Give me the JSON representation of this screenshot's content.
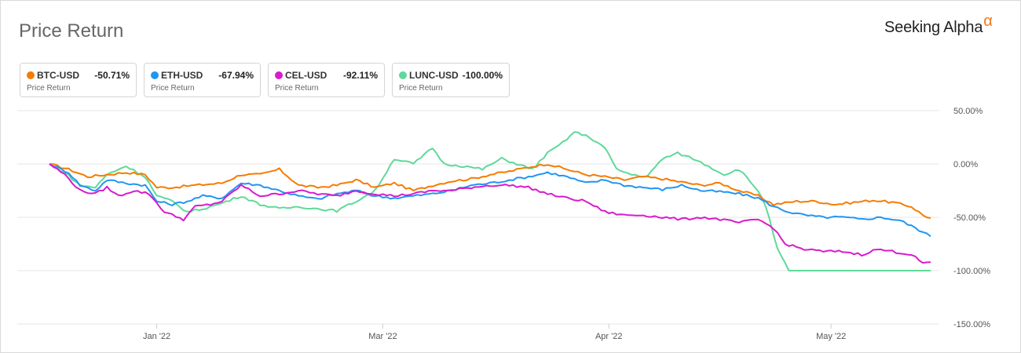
{
  "header": {
    "title": "Price Return",
    "brand": "Seeking Alpha",
    "brand_mark": "α"
  },
  "legend": [
    {
      "symbol": "BTC-USD",
      "value": "-50.71%",
      "sub": "Price Return",
      "color": "#f57c00"
    },
    {
      "symbol": "ETH-USD",
      "value": "-67.94%",
      "sub": "Price Return",
      "color": "#2196f3"
    },
    {
      "symbol": "CEL-USD",
      "value": "-92.11%",
      "sub": "Price Return",
      "color": "#d81bcd"
    },
    {
      "symbol": "LUNC-USD",
      "value": "-100.00%",
      "sub": "Price Return",
      "color": "#5fd99a"
    }
  ],
  "chart_data": {
    "type": "line",
    "ylim": [
      -150,
      50
    ],
    "yticks": [
      {
        "value": 50,
        "label": "50.00%"
      },
      {
        "value": 0,
        "label": "0.00%"
      },
      {
        "value": -50,
        "label": "-50.00%"
      },
      {
        "value": -100,
        "label": "-100.00%"
      },
      {
        "value": -150,
        "label": "-150.00%"
      }
    ],
    "xticks": [
      {
        "index": 28,
        "label": "Jan '22"
      },
      {
        "index": 87,
        "label": "Mar '22"
      },
      {
        "index": 146,
        "label": "Apr '22"
      },
      {
        "index": 204,
        "label": "May '22"
      }
    ],
    "n_points": 231,
    "series": [
      {
        "name": "BTC-USD",
        "color": "#f57c00",
        "anchors": [
          [
            0,
            0
          ],
          [
            5,
            -5
          ],
          [
            10,
            -12
          ],
          [
            15,
            -10
          ],
          [
            20,
            -8
          ],
          [
            25,
            -10
          ],
          [
            28,
            -22
          ],
          [
            32,
            -22
          ],
          [
            38,
            -20
          ],
          [
            45,
            -18
          ],
          [
            50,
            -10
          ],
          [
            55,
            -10
          ],
          [
            60,
            -5
          ],
          [
            65,
            -20
          ],
          [
            70,
            -22
          ],
          [
            75,
            -20
          ],
          [
            80,
            -15
          ],
          [
            85,
            -22
          ],
          [
            90,
            -18
          ],
          [
            95,
            -25
          ],
          [
            100,
            -20
          ],
          [
            105,
            -16
          ],
          [
            110,
            -14
          ],
          [
            115,
            -10
          ],
          [
            120,
            -7
          ],
          [
            125,
            -3
          ],
          [
            130,
            0
          ],
          [
            135,
            -5
          ],
          [
            140,
            -10
          ],
          [
            145,
            -12
          ],
          [
            150,
            -15
          ],
          [
            155,
            -12
          ],
          [
            160,
            -14
          ],
          [
            165,
            -17
          ],
          [
            170,
            -20
          ],
          [
            175,
            -18
          ],
          [
            180,
            -25
          ],
          [
            185,
            -30
          ],
          [
            189,
            -38
          ],
          [
            195,
            -35
          ],
          [
            200,
            -35
          ],
          [
            205,
            -38
          ],
          [
            210,
            -36
          ],
          [
            215,
            -34
          ],
          [
            220,
            -36
          ],
          [
            225,
            -40
          ],
          [
            228,
            -48
          ],
          [
            230,
            -50.71
          ]
        ]
      },
      {
        "name": "ETH-USD",
        "color": "#2196f3",
        "anchors": [
          [
            0,
            0
          ],
          [
            5,
            -8
          ],
          [
            8,
            -20
          ],
          [
            12,
            -25
          ],
          [
            15,
            -15
          ],
          [
            20,
            -18
          ],
          [
            25,
            -20
          ],
          [
            28,
            -35
          ],
          [
            32,
            -38
          ],
          [
            36,
            -35
          ],
          [
            40,
            -30
          ],
          [
            45,
            -32
          ],
          [
            50,
            -18
          ],
          [
            55,
            -20
          ],
          [
            60,
            -25
          ],
          [
            65,
            -30
          ],
          [
            70,
            -33
          ],
          [
            75,
            -28
          ],
          [
            80,
            -25
          ],
          [
            85,
            -30
          ],
          [
            90,
            -32
          ],
          [
            95,
            -30
          ],
          [
            100,
            -28
          ],
          [
            105,
            -25
          ],
          [
            110,
            -20
          ],
          [
            115,
            -18
          ],
          [
            120,
            -15
          ],
          [
            125,
            -12
          ],
          [
            130,
            -8
          ],
          [
            135,
            -12
          ],
          [
            140,
            -18
          ],
          [
            145,
            -15
          ],
          [
            150,
            -20
          ],
          [
            155,
            -22
          ],
          [
            160,
            -24
          ],
          [
            165,
            -20
          ],
          [
            170,
            -25
          ],
          [
            175,
            -26
          ],
          [
            180,
            -28
          ],
          [
            185,
            -32
          ],
          [
            189,
            -40
          ],
          [
            193,
            -45
          ],
          [
            197,
            -48
          ],
          [
            202,
            -50
          ],
          [
            207,
            -50
          ],
          [
            212,
            -52
          ],
          [
            217,
            -50
          ],
          [
            222,
            -53
          ],
          [
            226,
            -60
          ],
          [
            230,
            -67.94
          ]
        ]
      },
      {
        "name": "CEL-USD",
        "color": "#d81bcd",
        "anchors": [
          [
            0,
            0
          ],
          [
            4,
            -10
          ],
          [
            8,
            -25
          ],
          [
            12,
            -28
          ],
          [
            15,
            -22
          ],
          [
            18,
            -30
          ],
          [
            22,
            -25
          ],
          [
            26,
            -28
          ],
          [
            30,
            -45
          ],
          [
            35,
            -52
          ],
          [
            38,
            -40
          ],
          [
            42,
            -38
          ],
          [
            45,
            -35
          ],
          [
            50,
            -20
          ],
          [
            55,
            -30
          ],
          [
            60,
            -28
          ],
          [
            65,
            -25
          ],
          [
            70,
            -28
          ],
          [
            75,
            -30
          ],
          [
            80,
            -25
          ],
          [
            85,
            -28
          ],
          [
            90,
            -30
          ],
          [
            95,
            -28
          ],
          [
            100,
            -25
          ],
          [
            105,
            -25
          ],
          [
            110,
            -22
          ],
          [
            115,
            -20
          ],
          [
            120,
            -20
          ],
          [
            125,
            -22
          ],
          [
            130,
            -28
          ],
          [
            135,
            -32
          ],
          [
            140,
            -35
          ],
          [
            145,
            -45
          ],
          [
            150,
            -48
          ],
          [
            155,
            -48
          ],
          [
            160,
            -50
          ],
          [
            165,
            -52
          ],
          [
            170,
            -50
          ],
          [
            175,
            -52
          ],
          [
            180,
            -55
          ],
          [
            185,
            -52
          ],
          [
            189,
            -60
          ],
          [
            192,
            -75
          ],
          [
            197,
            -80
          ],
          [
            202,
            -82
          ],
          [
            207,
            -82
          ],
          [
            212,
            -85
          ],
          [
            216,
            -80
          ],
          [
            220,
            -82
          ],
          [
            225,
            -85
          ],
          [
            228,
            -93
          ],
          [
            230,
            -92.11
          ]
        ]
      },
      {
        "name": "LUNC-USD",
        "color": "#5fd99a",
        "anchors": [
          [
            0,
            0
          ],
          [
            4,
            -8
          ],
          [
            8,
            -20
          ],
          [
            12,
            -22
          ],
          [
            15,
            -10
          ],
          [
            18,
            -5
          ],
          [
            20,
            -2
          ],
          [
            23,
            -8
          ],
          [
            25,
            -12
          ],
          [
            28,
            -30
          ],
          [
            32,
            -35
          ],
          [
            36,
            -45
          ],
          [
            40,
            -42
          ],
          [
            44,
            -38
          ],
          [
            50,
            -30
          ],
          [
            55,
            -38
          ],
          [
            60,
            -42
          ],
          [
            65,
            -40
          ],
          [
            70,
            -42
          ],
          [
            75,
            -44
          ],
          [
            80,
            -35
          ],
          [
            85,
            -25
          ],
          [
            90,
            5
          ],
          [
            95,
            0
          ],
          [
            100,
            15
          ],
          [
            103,
            0
          ],
          [
            108,
            -2
          ],
          [
            113,
            -5
          ],
          [
            118,
            5
          ],
          [
            122,
            0
          ],
          [
            126,
            -5
          ],
          [
            130,
            10
          ],
          [
            134,
            20
          ],
          [
            137,
            30
          ],
          [
            141,
            25
          ],
          [
            145,
            15
          ],
          [
            148,
            -5
          ],
          [
            152,
            -10
          ],
          [
            156,
            -12
          ],
          [
            160,
            5
          ],
          [
            164,
            10
          ],
          [
            168,
            5
          ],
          [
            172,
            -2
          ],
          [
            176,
            -10
          ],
          [
            180,
            -5
          ],
          [
            185,
            -25
          ],
          [
            187,
            -40
          ],
          [
            190,
            -80
          ],
          [
            193,
            -100
          ],
          [
            230,
            -100
          ]
        ]
      }
    ]
  }
}
